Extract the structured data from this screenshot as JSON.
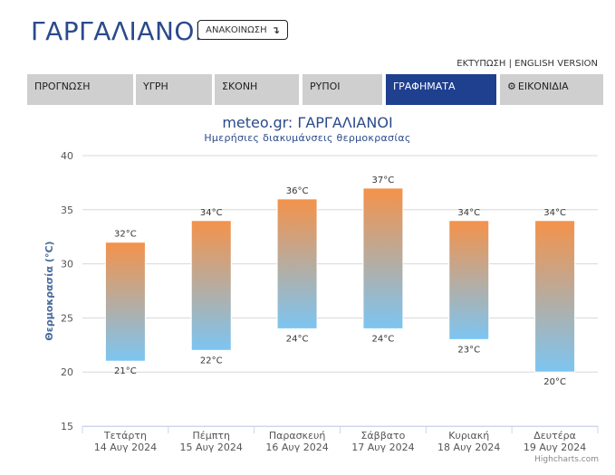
{
  "header": {
    "title": "ΓΑΡΓΑΛΙΑΝΟΙ",
    "announce_label": "ΑΝΑΚΟΙΝΩΣΗ",
    "announce_icon": "down-arrow-icon",
    "print_label": "ΕΚΤΥΠΩΣΗ",
    "separator": "|",
    "english_label": "ENGLISH VERSION"
  },
  "tabs": [
    {
      "label": "ΠΡΟΓΝΩΣΗ",
      "active": false
    },
    {
      "label": "ΥΓΡΗ",
      "active": false
    },
    {
      "label": "ΣΚΟΝΗ",
      "active": false
    },
    {
      "label": "ΡΥΠΟΙ",
      "active": false
    },
    {
      "label": "ΓΡΑΦΗΜΑΤΑ",
      "active": true
    },
    {
      "label": "ΕΙΚΟΝΙΔΙΑ",
      "active": false,
      "icon": "gear-icon"
    }
  ],
  "colors": {
    "accent": "#1f3f8f",
    "title": "#2b4a8b",
    "bar_top": "#f4924a",
    "bar_bottom": "#7cc5f2"
  },
  "chart_data": {
    "type": "columnrange",
    "title": "meteo.gr: ΓΑΡΓΑΛΙΑΝΟΙ",
    "subtitle": "Ημερήσιες διακυμάνσεις θερμοκρασίας",
    "ylabel": "Θερμοκρασία (°C)",
    "ylim": [
      15,
      40
    ],
    "yticks": [
      "15",
      "20",
      "25",
      "30",
      "35",
      "40"
    ],
    "grid": true,
    "unit": "°C",
    "categories": [
      {
        "day": "Τετάρτη",
        "date": "14 Αυγ 2024"
      },
      {
        "day": "Πέμπτη",
        "date": "15 Αυγ 2024"
      },
      {
        "day": "Παρασκευή",
        "date": "16 Αυγ 2024"
      },
      {
        "day": "Σάββατο",
        "date": "17 Αυγ 2024"
      },
      {
        "day": "Κυριακή",
        "date": "18 Αυγ 2024"
      },
      {
        "day": "Δευτέρα",
        "date": "19 Αυγ 2024"
      }
    ],
    "low": [
      21,
      22,
      24,
      24,
      23,
      20
    ],
    "high": [
      32,
      34,
      36,
      37,
      34,
      34
    ]
  },
  "credits": "Highcharts.com"
}
